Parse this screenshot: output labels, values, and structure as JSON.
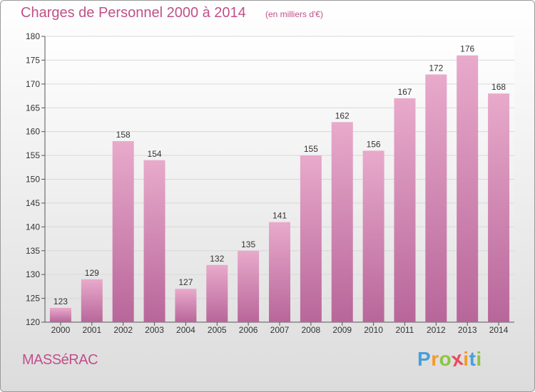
{
  "chart_data": {
    "type": "bar",
    "title": "Charges de Personnel 2000 à 2014",
    "subtitle": "(en milliers d'€)",
    "categories": [
      "2000",
      "2001",
      "2002",
      "2003",
      "2004",
      "2005",
      "2006",
      "2007",
      "2008",
      "2009",
      "2010",
      "2011",
      "2012",
      "2013",
      "2014"
    ],
    "values": [
      123,
      129,
      158,
      154,
      127,
      132,
      135,
      141,
      155,
      162,
      156,
      167,
      172,
      176,
      168
    ],
    "ylim": [
      120,
      180
    ],
    "yticks": [
      120,
      125,
      130,
      135,
      140,
      145,
      150,
      155,
      160,
      165,
      170,
      175,
      180
    ],
    "grid": true,
    "bar_color": "#d98bb5"
  },
  "footer": {
    "town": "MASSéRAC",
    "logo_letters": [
      {
        "ch": "P",
        "color": "#4a9fd8"
      },
      {
        "ch": "r",
        "color": "#f39a2b"
      },
      {
        "ch": "o",
        "color": "#8cc63f"
      },
      {
        "ch": "x",
        "color": "#e84a5f"
      },
      {
        "ch": "i",
        "color": "#f39a2b"
      },
      {
        "ch": "t",
        "color": "#4a9fd8"
      },
      {
        "ch": "i",
        "color": "#8cc63f"
      }
    ]
  }
}
